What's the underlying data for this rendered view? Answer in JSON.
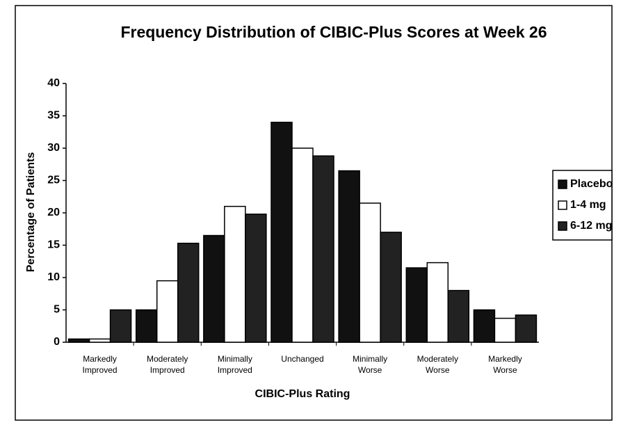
{
  "chart_data": {
    "type": "bar",
    "title": "Frequency Distribution of CIBIC-Plus Scores at Week 26",
    "x_label": "CIBIC-Plus Rating",
    "y_label": "Percentage of Patients",
    "categories": [
      "Markedly Improved",
      "Moderately Improved",
      "Minimally Improved",
      "Unchanged",
      "Minimally Worse",
      "Moderately Worse",
      "Markedly Worse"
    ],
    "series": [
      {
        "name": "Placebo",
        "color": "#111111",
        "values": [
          0.5,
          5,
          16.5,
          34,
          26.5,
          11.5,
          5
        ]
      },
      {
        "name": "1-4 mg",
        "color": "#ffffff",
        "values": [
          0.5,
          9.5,
          21,
          30,
          21.5,
          12.3,
          3.7
        ]
      },
      {
        "name": "6-12 mg",
        "color": "#222222",
        "values": [
          5,
          15.3,
          19.8,
          28.8,
          17,
          8,
          4.2
        ]
      }
    ],
    "ylim": [
      0,
      40
    ],
    "yticks": [
      0,
      5,
      10,
      15,
      20,
      25,
      30,
      35,
      40
    ],
    "grid": false,
    "legend": "right"
  }
}
